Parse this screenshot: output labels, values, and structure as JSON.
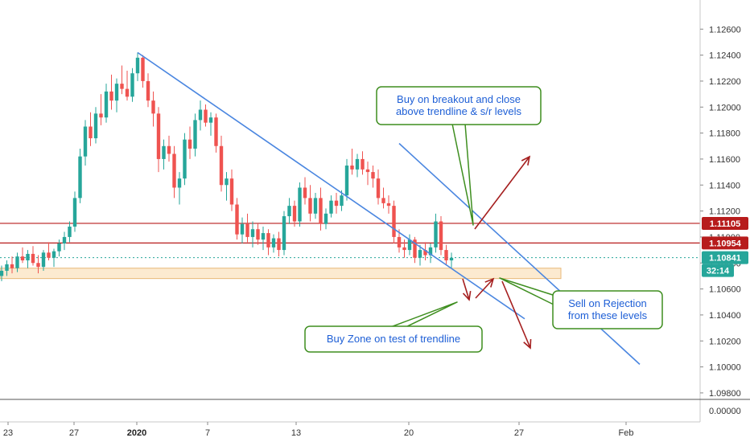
{
  "chart_data": {
    "type": "candlestick",
    "title": "",
    "xlabel": "",
    "ylabel": "",
    "ylim": [
      1.0975,
      1.1275
    ],
    "grid": false,
    "y_ticks": [
      "1.12600",
      "1.12400",
      "1.12200",
      "1.12000",
      "1.11800",
      "1.11600",
      "1.11400",
      "1.11200",
      "1.11000",
      "1.10800",
      "1.10600",
      "1.10400",
      "1.10200",
      "1.10000",
      "1.09800"
    ],
    "lower_pane_tick": "0.00000",
    "x_ticks": [
      "23",
      "27",
      "2020",
      "7",
      "13",
      "20",
      "27",
      "Feb"
    ],
    "price_levels": [
      {
        "label": "1.11105",
        "value": 1.11105,
        "color": "#b71c1c"
      },
      {
        "label": "1.10954",
        "value": 1.10954,
        "color": "#b71c1c"
      },
      {
        "label": "1.10841",
        "value": 1.10841,
        "color": "#26a69a"
      }
    ],
    "countdown": "32:14",
    "zone": {
      "name": "Buy Zone",
      "low": 1.1068,
      "high": 1.1076,
      "color": "#f5deb3"
    },
    "annotations": [
      {
        "id": "buy-breakout",
        "lines": [
          "Buy on breakout and close",
          "above trendline & s/r levels"
        ]
      },
      {
        "id": "sell-rejection",
        "lines": [
          "Sell on Rejection",
          "from these levels"
        ]
      },
      {
        "id": "buy-zone",
        "lines": [
          "Buy Zone on test of trendline"
        ]
      }
    ],
    "trendlines": [
      {
        "name": "lower-trendline",
        "from": {
          "bar": 26,
          "price": 1.1242
        },
        "to": {
          "bar": 100,
          "price": 1.1037
        }
      },
      {
        "name": "upper-trendline",
        "from": {
          "bar": 76,
          "price": 1.1172
        },
        "to": {
          "bar": 122,
          "price": 1.1002
        }
      }
    ],
    "candles": [
      [
        1.107,
        1.1078,
        1.1066,
        1.1074
      ],
      [
        1.1074,
        1.1082,
        1.107,
        1.1079
      ],
      [
        1.1079,
        1.1085,
        1.1072,
        1.1076
      ],
      [
        1.1076,
        1.1088,
        1.1073,
        1.1085
      ],
      [
        1.1085,
        1.1092,
        1.108,
        1.1082
      ],
      [
        1.1082,
        1.109,
        1.1076,
        1.1087
      ],
      [
        1.1087,
        1.1093,
        1.1078,
        1.108
      ],
      [
        1.108,
        1.1086,
        1.1072,
        1.1077
      ],
      [
        1.1077,
        1.109,
        1.1074,
        1.1088
      ],
      [
        1.1088,
        1.1096,
        1.1082,
        1.1084
      ],
      [
        1.1084,
        1.1091,
        1.1077,
        1.1089
      ],
      [
        1.1089,
        1.1098,
        1.1085,
        1.1095
      ],
      [
        1.1095,
        1.1104,
        1.109,
        1.11
      ],
      [
        1.11,
        1.1112,
        1.1096,
        1.1108
      ],
      [
        1.1108,
        1.1135,
        1.1104,
        1.113
      ],
      [
        1.113,
        1.1168,
        1.1126,
        1.1162
      ],
      [
        1.1162,
        1.119,
        1.1155,
        1.1185
      ],
      [
        1.1185,
        1.1196,
        1.117,
        1.1176
      ],
      [
        1.1176,
        1.12,
        1.1172,
        1.1195
      ],
      [
        1.1195,
        1.121,
        1.1186,
        1.1192
      ],
      [
        1.1192,
        1.1218,
        1.1188,
        1.1212
      ],
      [
        1.1212,
        1.1225,
        1.1198,
        1.1205
      ],
      [
        1.1205,
        1.1222,
        1.1196,
        1.1218
      ],
      [
        1.1218,
        1.1232,
        1.121,
        1.1214
      ],
      [
        1.1214,
        1.1228,
        1.1205,
        1.1208
      ],
      [
        1.1208,
        1.123,
        1.1204,
        1.1226
      ],
      [
        1.1226,
        1.1242,
        1.122,
        1.1238
      ],
      [
        1.1238,
        1.124,
        1.1215,
        1.122
      ],
      [
        1.122,
        1.1226,
        1.12,
        1.1205
      ],
      [
        1.1205,
        1.1212,
        1.1185,
        1.1195
      ],
      [
        1.1195,
        1.12,
        1.115,
        1.116
      ],
      [
        1.116,
        1.1175,
        1.1152,
        1.117
      ],
      [
        1.117,
        1.1178,
        1.1158,
        1.1164
      ],
      [
        1.1164,
        1.117,
        1.113,
        1.1138
      ],
      [
        1.1138,
        1.115,
        1.1125,
        1.1145
      ],
      [
        1.1145,
        1.118,
        1.114,
        1.1175
      ],
      [
        1.1175,
        1.1185,
        1.116,
        1.1168
      ],
      [
        1.1168,
        1.1195,
        1.1162,
        1.119
      ],
      [
        1.119,
        1.1205,
        1.1182,
        1.1198
      ],
      [
        1.1198,
        1.1202,
        1.1185,
        1.1188
      ],
      [
        1.1188,
        1.1196,
        1.1178,
        1.1192
      ],
      [
        1.1192,
        1.1195,
        1.1165,
        1.117
      ],
      [
        1.117,
        1.1178,
        1.1135,
        1.114
      ],
      [
        1.114,
        1.115,
        1.1128,
        1.1145
      ],
      [
        1.1145,
        1.1152,
        1.112,
        1.1125
      ],
      [
        1.1125,
        1.113,
        1.1098,
        1.1102
      ],
      [
        1.1102,
        1.1115,
        1.1095,
        1.111
      ],
      [
        1.111,
        1.1118,
        1.1096,
        1.11
      ],
      [
        1.11,
        1.1112,
        1.1092,
        1.1106
      ],
      [
        1.1106,
        1.111,
        1.1094,
        1.1098
      ],
      [
        1.1098,
        1.1108,
        1.109,
        1.1103
      ],
      [
        1.1103,
        1.1106,
        1.1086,
        1.1092
      ],
      [
        1.1092,
        1.1102,
        1.1088,
        1.1099
      ],
      [
        1.1099,
        1.1104,
        1.1085,
        1.109
      ],
      [
        1.109,
        1.112,
        1.1086,
        1.1116
      ],
      [
        1.1116,
        1.113,
        1.111,
        1.1124
      ],
      [
        1.1124,
        1.1128,
        1.1108,
        1.1112
      ],
      [
        1.1112,
        1.1142,
        1.1108,
        1.1138
      ],
      [
        1.1138,
        1.1146,
        1.1125,
        1.113
      ],
      [
        1.113,
        1.114,
        1.1112,
        1.1118
      ],
      [
        1.1118,
        1.1134,
        1.1114,
        1.113
      ],
      [
        1.113,
        1.1138,
        1.1105,
        1.111
      ],
      [
        1.111,
        1.1122,
        1.1106,
        1.1118
      ],
      [
        1.1118,
        1.1132,
        1.1115,
        1.1128
      ],
      [
        1.1128,
        1.1134,
        1.1118,
        1.1124
      ],
      [
        1.1124,
        1.1136,
        1.112,
        1.1132
      ],
      [
        1.1132,
        1.116,
        1.1128,
        1.1155
      ],
      [
        1.1155,
        1.1168,
        1.1148,
        1.1152
      ],
      [
        1.1152,
        1.1164,
        1.1146,
        1.116
      ],
      [
        1.116,
        1.1166,
        1.1148,
        1.1152
      ],
      [
        1.1152,
        1.1158,
        1.114,
        1.115
      ],
      [
        1.115,
        1.1155,
        1.1138,
        1.1145
      ],
      [
        1.1145,
        1.1152,
        1.1125,
        1.113
      ],
      [
        1.113,
        1.1138,
        1.1122,
        1.1126
      ],
      [
        1.1126,
        1.1132,
        1.1118,
        1.1124
      ],
      [
        1.1124,
        1.1128,
        1.1095,
        1.11
      ],
      [
        1.11,
        1.1106,
        1.1088,
        1.1092
      ],
      [
        1.1092,
        1.1098,
        1.1084,
        1.109
      ],
      [
        1.109,
        1.1102,
        1.1086,
        1.1098
      ],
      [
        1.1098,
        1.11,
        1.108,
        1.1084
      ],
      [
        1.1084,
        1.1094,
        1.1078,
        1.109
      ],
      [
        1.109,
        1.1096,
        1.1082,
        1.1086
      ],
      [
        1.1086,
        1.1095,
        1.108,
        1.1092
      ],
      [
        1.1092,
        1.1118,
        1.1088,
        1.1112
      ],
      [
        1.1112,
        1.1116,
        1.1086,
        1.109
      ],
      [
        1.109,
        1.1094,
        1.1078,
        1.1082
      ],
      [
        1.1082,
        1.1088,
        1.1076,
        1.1084
      ]
    ]
  }
}
